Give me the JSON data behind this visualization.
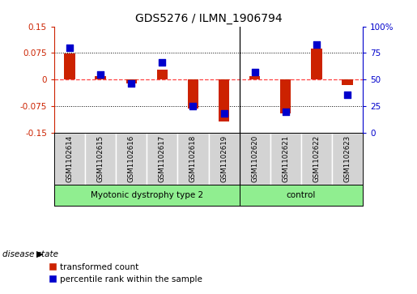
{
  "title": "GDS5276 / ILMN_1906794",
  "samples": [
    "GSM1102614",
    "GSM1102615",
    "GSM1102616",
    "GSM1102617",
    "GSM1102618",
    "GSM1102619",
    "GSM1102620",
    "GSM1102621",
    "GSM1102622",
    "GSM1102623"
  ],
  "transformed_count": [
    0.073,
    0.01,
    -0.012,
    0.028,
    -0.083,
    -0.118,
    0.01,
    -0.095,
    0.088,
    -0.015
  ],
  "percentile_rank": [
    80,
    55,
    46,
    66,
    25,
    18,
    57,
    20,
    83,
    36
  ],
  "group_boundary": 5.5,
  "groups": [
    {
      "label": "Myotonic dystrophy type 2",
      "start": 0,
      "end": 5,
      "color": "#90EE90"
    },
    {
      "label": "control",
      "start": 6,
      "end": 9,
      "color": "#90EE90"
    }
  ],
  "ylim_left": [
    -0.15,
    0.15
  ],
  "ylim_right": [
    0,
    100
  ],
  "yticks_left": [
    -0.15,
    -0.075,
    0,
    0.075,
    0.15
  ],
  "yticks_right": [
    0,
    25,
    50,
    75,
    100
  ],
  "ytick_labels_left": [
    "-0.15",
    "-0.075",
    "0",
    "0.075",
    "0.15"
  ],
  "ytick_labels_right": [
    "0",
    "25",
    "50",
    "75",
    "100%"
  ],
  "hlines_dotted": [
    0.075,
    -0.075
  ],
  "red_color": "#CC2200",
  "blue_color": "#0000CC",
  "dashed_zero_color": "#FF4444",
  "bar_width": 0.35,
  "dot_size": 38,
  "sample_box_color": "#D3D3D3",
  "disease_state_label": "disease state",
  "legend_labels": [
    "transformed count",
    "percentile rank within the sample"
  ]
}
